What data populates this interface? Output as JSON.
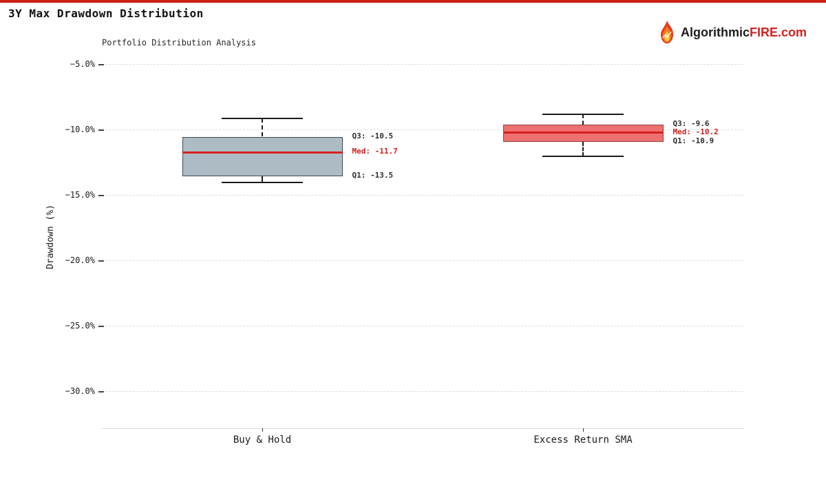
{
  "header": {
    "title": "3Y Max Drawdown Distribution",
    "logo": {
      "prefix": "Algorithmic",
      "highlight": "FIRE",
      "suffix": ".com"
    }
  },
  "chart_data": {
    "type": "boxplot",
    "title": "Portfolio Distribution Analysis",
    "ylabel": "Drawdown (%)",
    "ylim": [
      -32.8,
      -4.5
    ],
    "grid": "horizontal-dashed",
    "legend": "none",
    "y_ticks": [
      {
        "value": -5.0,
        "label": "−5.0%"
      },
      {
        "value": -10.0,
        "label": "−10.0%"
      },
      {
        "value": -15.0,
        "label": "−15.0%"
      },
      {
        "value": -20.0,
        "label": "−20.0%"
      },
      {
        "value": -25.0,
        "label": "−25.0%"
      },
      {
        "value": -30.0,
        "label": "−30.0%"
      }
    ],
    "categories": [
      "Buy & Hold",
      "Excess Return SMA"
    ],
    "series": [
      {
        "name": "Buy & Hold",
        "whisker_high": -9.1,
        "q3": -10.5,
        "median": -11.7,
        "q1": -13.5,
        "whisker_low": -14.0,
        "fill": "#adbcc4",
        "edge": "#3d4a52",
        "annotations": {
          "q3": "Q3: -10.5",
          "med": "Med: -11.7",
          "q1": "Q1: -13.5"
        }
      },
      {
        "name": "Excess Return SMA",
        "whisker_high": -8.8,
        "q3": -9.6,
        "median": -10.2,
        "q1": -10.9,
        "whisker_low": -12.0,
        "fill": "#ee7171",
        "edge": "#8a4038",
        "annotations": {
          "q3": "Q3: -9.6",
          "med": "Med: -10.2",
          "q1": "Q1: -10.9"
        }
      }
    ],
    "colors": {
      "accent_bar": "#cc2015",
      "median_line": "#d62020",
      "annotation_text": "#2d2d2d",
      "annotation_median": "#cc2020",
      "gridline": "#dedede",
      "whisker": "#1a1a1a",
      "logo_dark": "#1c1c1c",
      "logo_red": "#d42222"
    }
  }
}
